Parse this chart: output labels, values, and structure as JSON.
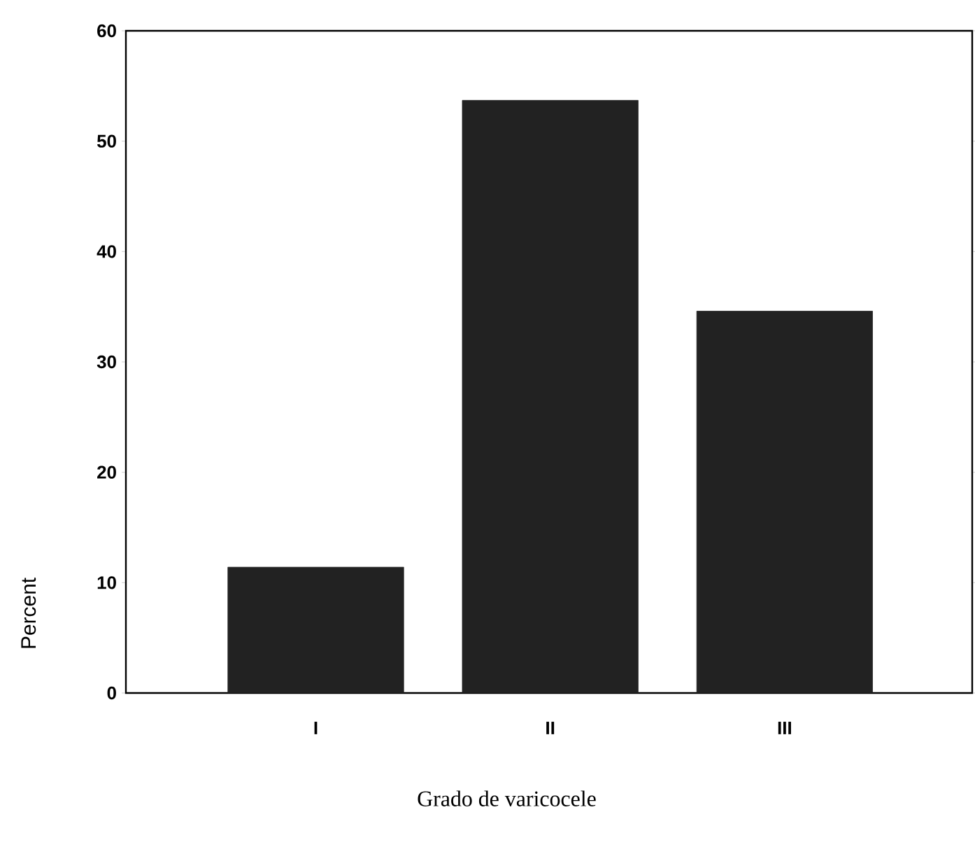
{
  "chart_data": {
    "type": "bar",
    "xlabel": "Grado de varicocele",
    "ylabel": "Percent",
    "categories": [
      "I",
      "II",
      "III"
    ],
    "values": [
      11.4,
      53.7,
      34.6
    ],
    "color": "#222222",
    "ylim": [
      0,
      60
    ],
    "yticks": [
      0,
      10,
      20,
      30,
      40,
      50,
      60
    ],
    "grid": false
  }
}
